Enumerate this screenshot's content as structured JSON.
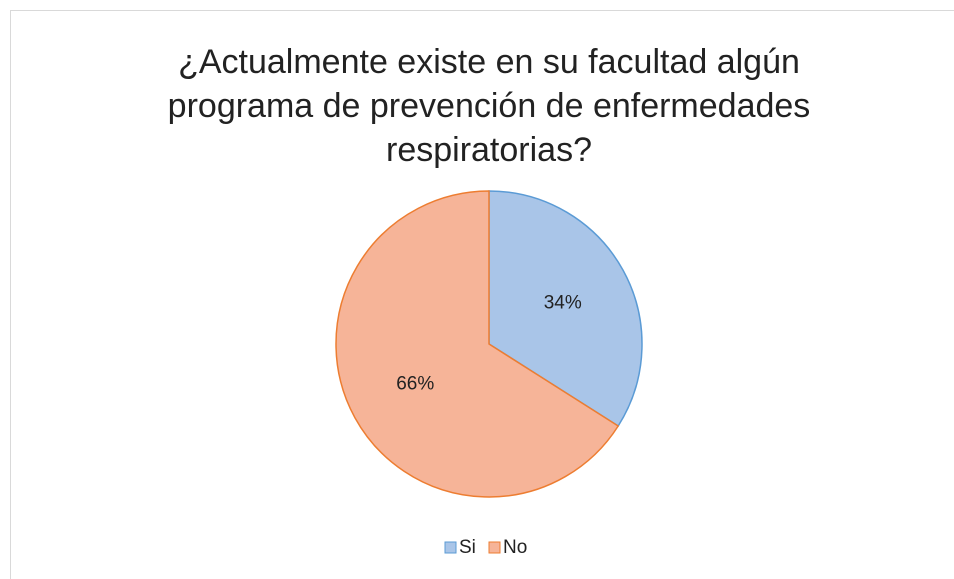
{
  "chart_data": {
    "type": "pie",
    "title": "¿Actualmente existe en su facultad algún programa de prevención de enfermedades respiratorias?",
    "categories": [
      "Si",
      "No"
    ],
    "values": [
      34,
      66
    ],
    "value_labels": [
      "34%",
      "66%"
    ],
    "colors": [
      "#a9c5e8",
      "#f6b498"
    ],
    "edge_colors": [
      "#5b9bd5",
      "#ed7d31"
    ],
    "legend": "bottom"
  }
}
